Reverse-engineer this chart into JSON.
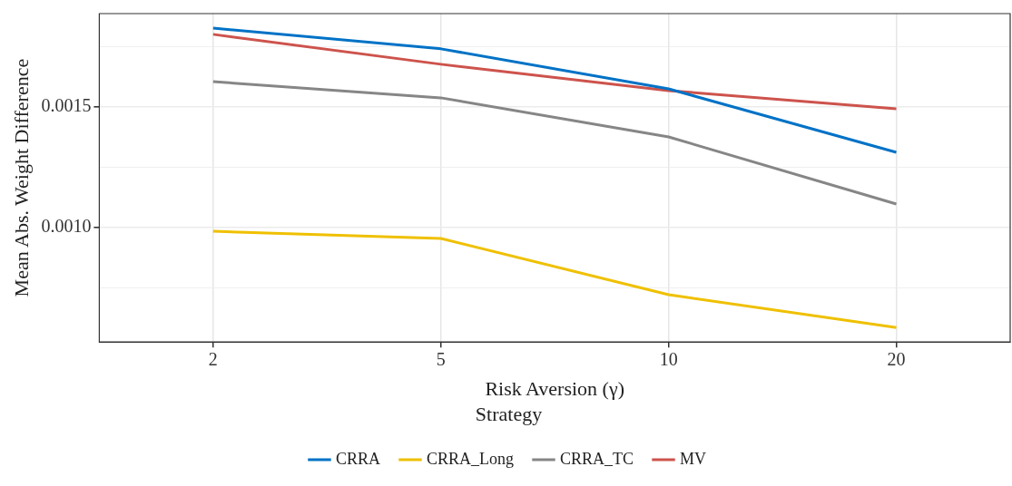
{
  "chart_data": {
    "type": "line",
    "xlabel": "Risk Aversion (γ)",
    "ylabel": "Mean Abs. Weight Difference",
    "legend_title": "Strategy",
    "categories": [
      "2",
      "5",
      "10",
      "20"
    ],
    "series": [
      {
        "name": "CRRA",
        "color": "#0072c6",
        "values": [
          0.001827,
          0.001741,
          0.001575,
          0.001312
        ]
      },
      {
        "name": "CRRA_Long",
        "color": "#efc000",
        "values": [
          0.000985,
          0.000955,
          0.000722,
          0.000586
        ]
      },
      {
        "name": "CRRA_TC",
        "color": "#868686",
        "values": [
          0.001605,
          0.001538,
          0.001376,
          0.001098
        ]
      },
      {
        "name": "MV",
        "color": "#cd534c",
        "values": [
          0.001801,
          0.001677,
          0.001568,
          0.001492
        ]
      }
    ],
    "ylim": [
      0.000526,
      0.001887
    ],
    "yticks": [
      {
        "value": 0.00075,
        "label": null
      },
      {
        "value": 0.001,
        "label": "0.0010"
      },
      {
        "value": 0.00125,
        "label": null
      },
      {
        "value": 0.0015,
        "label": "0.0015"
      },
      {
        "value": 0.00175,
        "label": null
      }
    ],
    "grid": true,
    "legend": "bottom",
    "marker": "none",
    "line_style": "solid"
  }
}
